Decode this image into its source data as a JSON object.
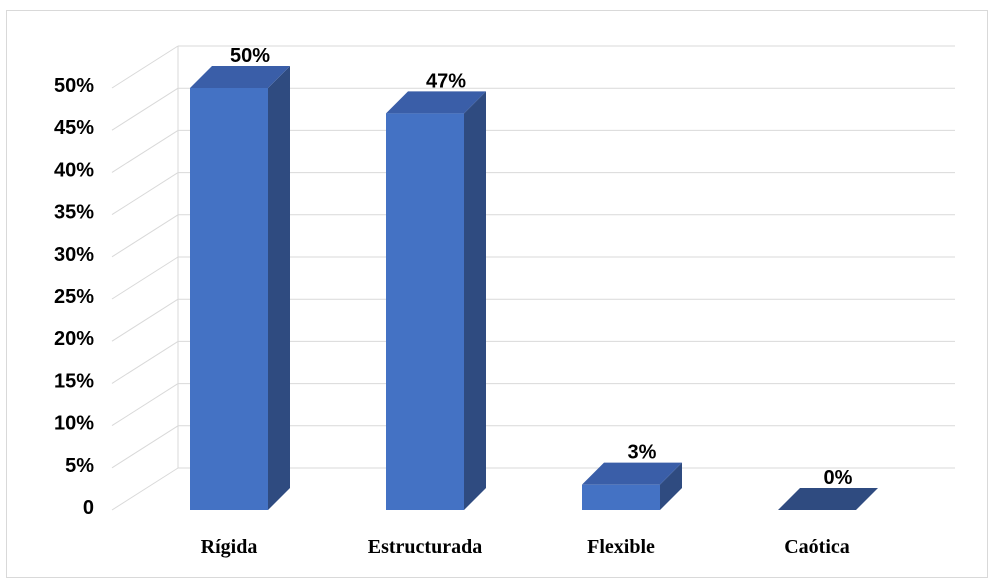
{
  "chart_data": {
    "type": "bar",
    "title": "",
    "xlabel": "",
    "ylabel": "",
    "categories": [
      "Rígida",
      "Estructurada",
      "Flexible",
      "Caótica"
    ],
    "values": [
      50,
      47,
      3,
      0
    ],
    "data_labels": [
      "50%",
      "47%",
      "3%",
      "0%"
    ],
    "ylim": [
      0,
      50
    ],
    "y_ticks": [
      0,
      5,
      10,
      15,
      20,
      25,
      30,
      35,
      40,
      45,
      50
    ],
    "y_tick_labels": [
      "0",
      "5%",
      "10%",
      "15%",
      "20%",
      "25%",
      "30%",
      "35%",
      "40%",
      "45%",
      "50%"
    ],
    "grid": true,
    "legend": "none",
    "style": "3d-column",
    "colors": {
      "bar_front": "#4472c4",
      "bar_side": "#2f4b80",
      "bar_top": "#3a5ea8",
      "grid": "#d9d9d9"
    }
  }
}
